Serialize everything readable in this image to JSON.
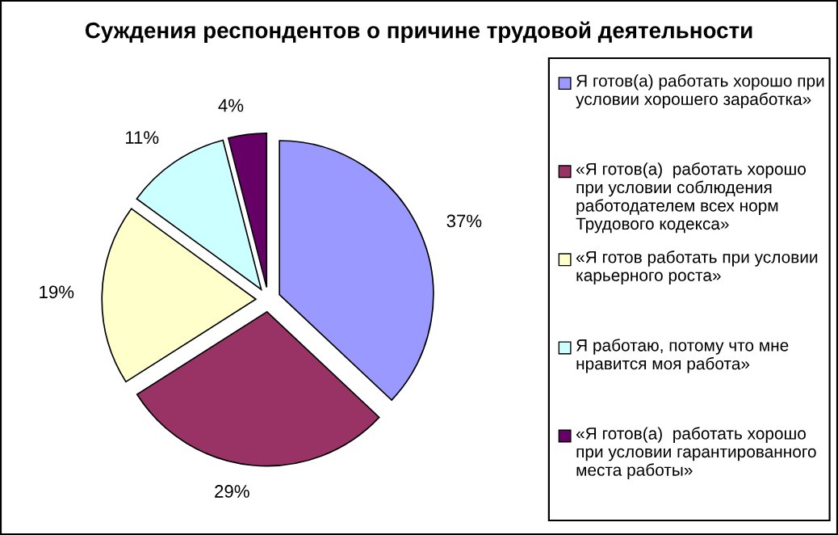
{
  "chart_data": {
    "type": "pie",
    "title": "Суждения респондентов о причине трудовой деятельности",
    "categories": [
      "Я готов(а) работать хорошо при условии хорошего заработка»",
      "«Я готов(а)  работать хорошо при условии соблюдения работодателем всех норм Трудового кодекса»",
      "«Я готов работать при условии карьерного роста»",
      "Я работаю, потому что мне нравится моя работа»",
      "«Я готов(а)  работать хорошо при условии гарантированного места работы»"
    ],
    "values": [
      37,
      29,
      19,
      11,
      4
    ],
    "value_labels": [
      "37%",
      "29%",
      "19%",
      "11%",
      "4%"
    ],
    "colors": [
      "#9999ff",
      "#993366",
      "#ffffcc",
      "#ccffff",
      "#660066"
    ],
    "legend": "right"
  }
}
